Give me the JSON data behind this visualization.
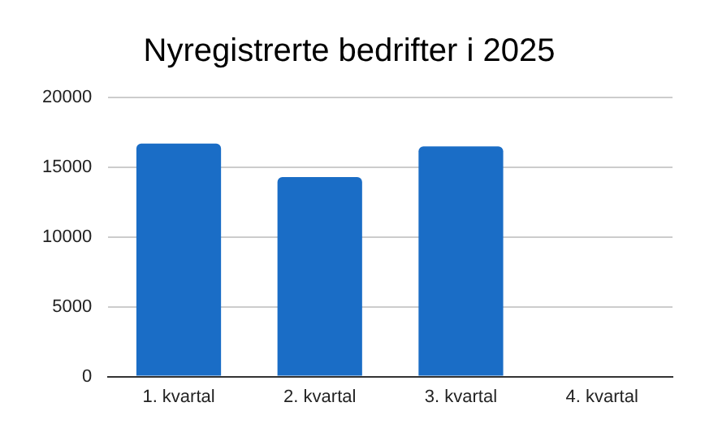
{
  "chart_data": {
    "type": "bar",
    "title": "Nyregistrerte bedrifter i 2025",
    "categories": [
      "1. kvartal",
      "2. kvartal",
      "3. kvartal",
      "4. kvartal"
    ],
    "values": [
      16700,
      14300,
      16500,
      null
    ],
    "color": "#1a6dc6",
    "ylim": [
      0,
      20000
    ],
    "yticks": [
      0,
      5000,
      10000,
      15000,
      20000
    ],
    "grid": "y",
    "legend": false
  }
}
